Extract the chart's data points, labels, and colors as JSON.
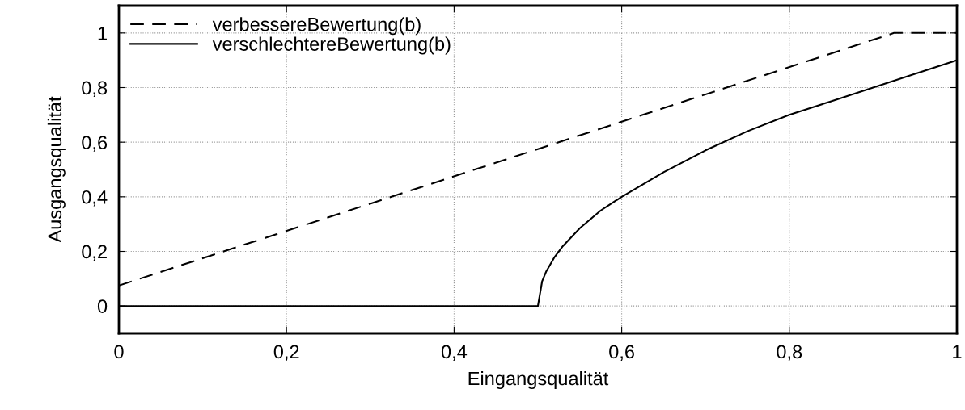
{
  "chart_data": {
    "type": "line",
    "xlabel": "Eingangsqualität",
    "ylabel": "Ausgangsqualität",
    "xlim": [
      0,
      1
    ],
    "ylim": [
      -0.1,
      1.1
    ],
    "xticks": [
      0,
      {
        "value": 0.2,
        "label": "0,2"
      },
      {
        "value": 0.4,
        "label": "0,4"
      },
      {
        "value": 0.6,
        "label": "0,6"
      },
      {
        "value": 0.8,
        "label": "0,8"
      },
      1
    ],
    "yticks": [
      0,
      {
        "value": 0.2,
        "label": "0,2"
      },
      {
        "value": 0.4,
        "label": "0,4"
      },
      {
        "value": 0.6,
        "label": "0,6"
      },
      {
        "value": 0.8,
        "label": "0,8"
      },
      1
    ],
    "grid": true,
    "legend": "top left",
    "series": [
      {
        "name": "verbessereBewertung(b)",
        "color": "#000000",
        "line_style": "dashed",
        "x": [
          0,
          0.925,
          1
        ],
        "values": [
          0.075,
          1,
          1
        ]
      },
      {
        "name": "verschlechtereBewertung(b)",
        "color": "#000000",
        "line_style": "solid",
        "x": [
          0,
          0.5,
          0.505,
          0.51,
          0.52,
          0.53,
          0.55,
          0.575,
          0.6,
          0.65,
          0.7,
          0.75,
          0.8,
          0.85,
          0.9,
          0.95,
          1
        ],
        "values": [
          0,
          0,
          0.09,
          0.127,
          0.18,
          0.22,
          0.285,
          0.35,
          0.4,
          0.49,
          0.57,
          0.64,
          0.7,
          0.75,
          0.8,
          0.85,
          0.9
        ]
      }
    ]
  }
}
